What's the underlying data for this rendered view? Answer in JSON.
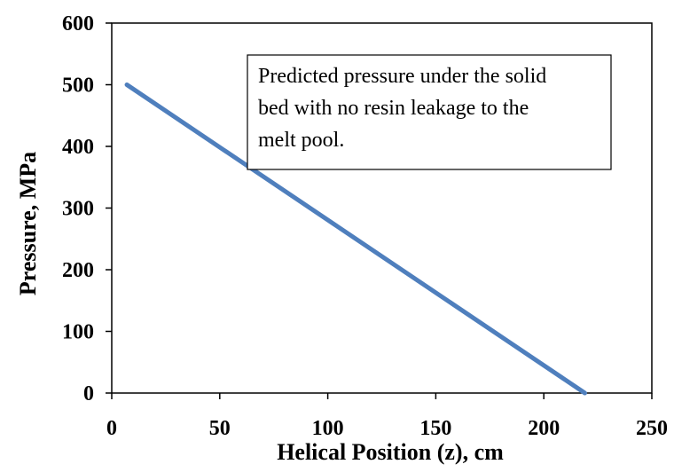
{
  "chart_data": {
    "type": "line",
    "title": "",
    "xlabel": "Helical Position (z), cm",
    "ylabel": "Pressure, MPa",
    "xlim": [
      0,
      250
    ],
    "ylim": [
      0,
      600
    ],
    "xticks": [
      0,
      50,
      100,
      150,
      200,
      250
    ],
    "yticks": [
      0,
      100,
      200,
      300,
      400,
      500,
      600
    ],
    "grid": false,
    "legend": "none",
    "series": [
      {
        "color": "#4f7fbd",
        "x": [
          7,
          219
        ],
        "y": [
          500,
          0
        ]
      }
    ],
    "annotation": {
      "lines": [
        "Predicted pressure under the solid",
        "bed with no resin leakage to the",
        "melt pool."
      ]
    }
  }
}
